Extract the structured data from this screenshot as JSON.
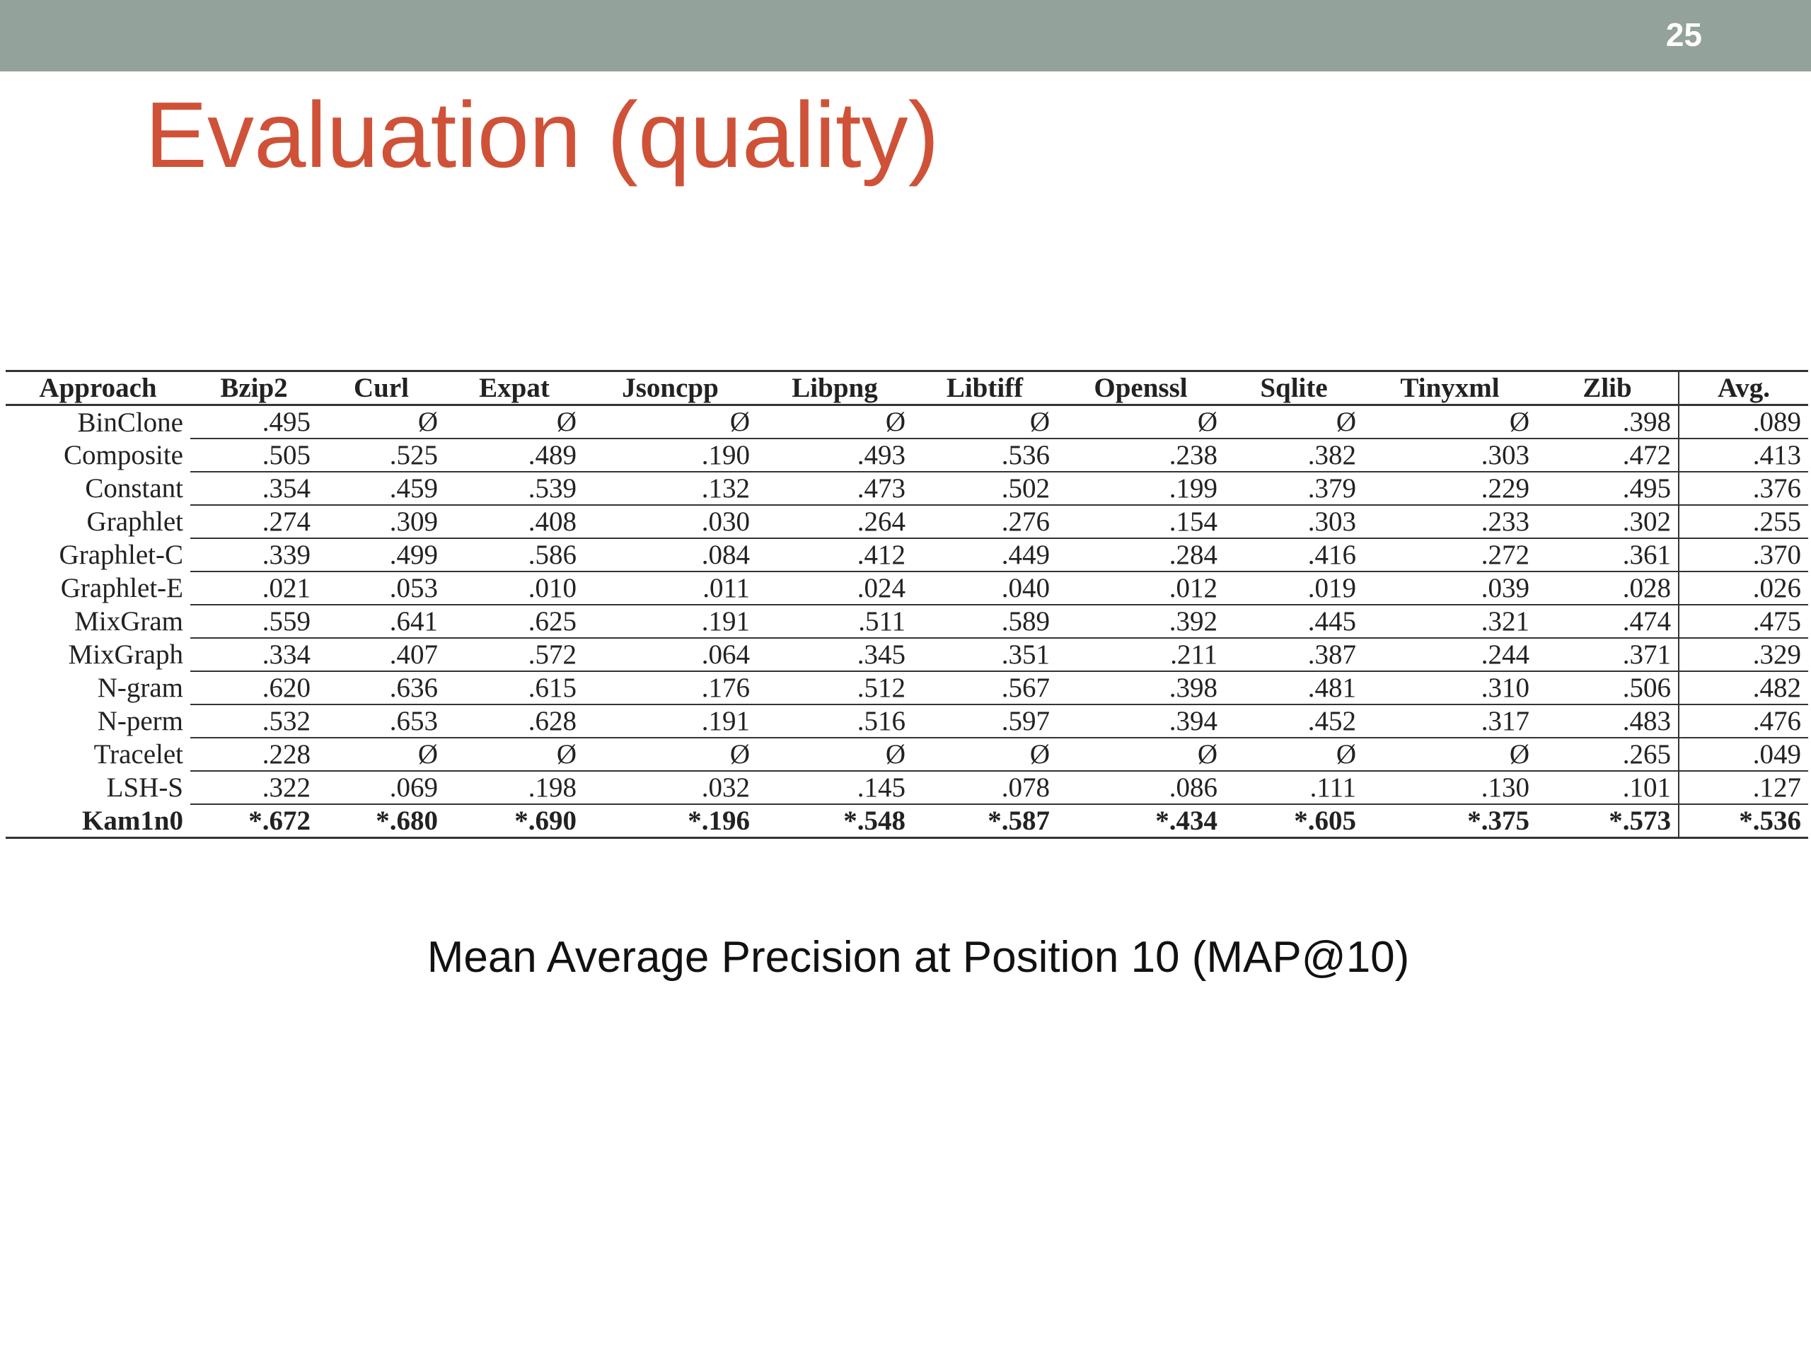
{
  "header": {
    "page_number": "25"
  },
  "title": "Evaluation (quality)",
  "table": {
    "columns": [
      "Approach",
      "Bzip2",
      "Curl",
      "Expat",
      "Jsoncpp",
      "Libpng",
      "Libtiff",
      "Openssl",
      "Sqlite",
      "Tinyxml",
      "Zlib",
      "Avg."
    ],
    "rows": [
      [
        "BinClone",
        ".495",
        "Ø",
        "Ø",
        "Ø",
        "Ø",
        "Ø",
        "Ø",
        "Ø",
        "Ø",
        ".398",
        ".089"
      ],
      [
        "Composite",
        ".505",
        ".525",
        ".489",
        ".190",
        ".493",
        ".536",
        ".238",
        ".382",
        ".303",
        ".472",
        ".413"
      ],
      [
        "Constant",
        ".354",
        ".459",
        ".539",
        ".132",
        ".473",
        ".502",
        ".199",
        ".379",
        ".229",
        ".495",
        ".376"
      ],
      [
        "Graphlet",
        ".274",
        ".309",
        ".408",
        ".030",
        ".264",
        ".276",
        ".154",
        ".303",
        ".233",
        ".302",
        ".255"
      ],
      [
        "Graphlet-C",
        ".339",
        ".499",
        ".586",
        ".084",
        ".412",
        ".449",
        ".284",
        ".416",
        ".272",
        ".361",
        ".370"
      ],
      [
        "Graphlet-E",
        ".021",
        ".053",
        ".010",
        ".011",
        ".024",
        ".040",
        ".012",
        ".019",
        ".039",
        ".028",
        ".026"
      ],
      [
        "MixGram",
        ".559",
        ".641",
        ".625",
        ".191",
        ".511",
        ".589",
        ".392",
        ".445",
        ".321",
        ".474",
        ".475"
      ],
      [
        "MixGraph",
        ".334",
        ".407",
        ".572",
        ".064",
        ".345",
        ".351",
        ".211",
        ".387",
        ".244",
        ".371",
        ".329"
      ],
      [
        "N-gram",
        ".620",
        ".636",
        ".615",
        ".176",
        ".512",
        ".567",
        ".398",
        ".481",
        ".310",
        ".506",
        ".482"
      ],
      [
        "N-perm",
        ".532",
        ".653",
        ".628",
        ".191",
        ".516",
        ".597",
        ".394",
        ".452",
        ".317",
        ".483",
        ".476"
      ],
      [
        "Tracelet",
        ".228",
        "Ø",
        "Ø",
        "Ø",
        "Ø",
        "Ø",
        "Ø",
        "Ø",
        "Ø",
        ".265",
        ".049"
      ],
      [
        "LSH-S",
        ".322",
        ".069",
        ".198",
        ".032",
        ".145",
        ".078",
        ".086",
        ".111",
        ".130",
        ".101",
        ".127"
      ],
      [
        "Kam1n0",
        "*.672",
        "*.680",
        "*.690",
        "*.196",
        "*.548",
        "*.587",
        "*.434",
        "*.605",
        "*.375",
        "*.573",
        "*.536"
      ]
    ]
  },
  "caption": "Mean Average Precision at Position 10 (MAP@10)"
}
